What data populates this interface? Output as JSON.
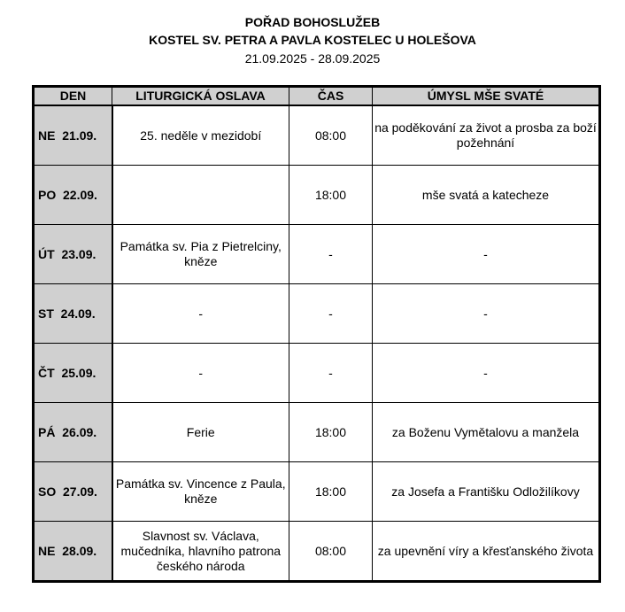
{
  "header": {
    "title": "POŘAD BOHOSLUŽEB",
    "subtitle": "KOSTEL SV. PETRA A PAVLA KOSTELEC U HOLEŠOVA",
    "dates": "21.09.2025 - 28.09.2025"
  },
  "table": {
    "columns": [
      "DEN",
      "LITURGICKÁ OSLAVA",
      "ČAS",
      "ÚMYSL MŠE SVATÉ"
    ],
    "rows": [
      {
        "day": "NE  21.09.",
        "feast": "25. neděle v mezidobí",
        "time": "08:00",
        "intention": "na poděkování za život a prosba za boží požehnání"
      },
      {
        "day": "PO  22.09.",
        "feast": "",
        "time": "18:00",
        "intention": "mše svatá a katecheze"
      },
      {
        "day": "ÚT  23.09.",
        "feast": "Památka sv. Pia z Pietrelciny, kněze",
        "time": "-",
        "intention": "-"
      },
      {
        "day": "ST  24.09.",
        "feast": "-",
        "time": "-",
        "intention": "-"
      },
      {
        "day": "ČT  25.09.",
        "feast": "-",
        "time": "-",
        "intention": "-"
      },
      {
        "day": "PÁ  26.09.",
        "feast": "Ferie",
        "time": "18:00",
        "intention": "za Boženu Vymětalovu a manžela"
      },
      {
        "day": "SO  27.09.",
        "feast": "Památka sv. Vincence z Paula, kněze",
        "time": "18:00",
        "intention": "za Josefa a Františku Odložilíkovy"
      },
      {
        "day": "NE  28.09.",
        "feast": "Slavnost sv. Václava, mučedníka, hlavního patrona českého národa",
        "time": "08:00",
        "intention": "za upevnění víry a křesťanského života"
      }
    ]
  }
}
